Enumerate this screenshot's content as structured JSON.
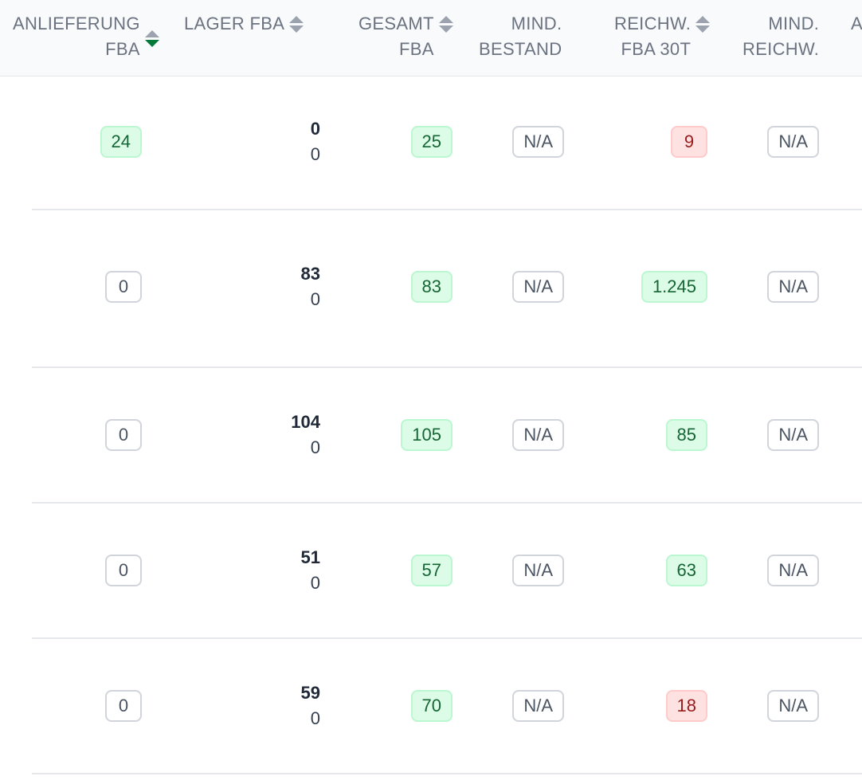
{
  "columns": [
    {
      "key": "anlieferung_fba",
      "label": "ANLIEFERUNG\nFBA",
      "sortable": true,
      "sort_state": "desc"
    },
    {
      "key": "lager_fba",
      "label": "LAGER FBA",
      "sortable": true,
      "sort_state": "none"
    },
    {
      "key": "gesamt_fba",
      "label": "GESAMT\nFBA",
      "sortable": true,
      "sort_state": "none"
    },
    {
      "key": "mind_bestand",
      "label": "MIND.\nBESTAND",
      "sortable": false
    },
    {
      "key": "reichw_fba_30t",
      "label": "REICHW.\nFBA 30T",
      "sortable": true,
      "sort_state": "none"
    },
    {
      "key": "mind_reichw",
      "label": "MIND.\nREICHW.",
      "sortable": false
    },
    {
      "key": "next",
      "label": "A",
      "sortable": false
    }
  ],
  "rows": [
    {
      "anlieferung": {
        "value": "24",
        "status": "green"
      },
      "lager": {
        "main": "0",
        "sub": "0"
      },
      "gesamt": {
        "value": "25",
        "status": "green"
      },
      "mind_bestand": {
        "value": "N/A",
        "status": "neutral"
      },
      "reichw": {
        "value": "9",
        "status": "red"
      },
      "mind_reichw": {
        "value": "N/A",
        "status": "neutral"
      }
    },
    {
      "anlieferung": {
        "value": "0",
        "status": "neutral"
      },
      "lager": {
        "main": "83",
        "sub": "0"
      },
      "gesamt": {
        "value": "83",
        "status": "green"
      },
      "mind_bestand": {
        "value": "N/A",
        "status": "neutral"
      },
      "reichw": {
        "value": "1.245",
        "status": "green"
      },
      "mind_reichw": {
        "value": "N/A",
        "status": "neutral"
      }
    },
    {
      "anlieferung": {
        "value": "0",
        "status": "neutral"
      },
      "lager": {
        "main": "104",
        "sub": "0"
      },
      "gesamt": {
        "value": "105",
        "status": "green"
      },
      "mind_bestand": {
        "value": "N/A",
        "status": "neutral"
      },
      "reichw": {
        "value": "85",
        "status": "green"
      },
      "mind_reichw": {
        "value": "N/A",
        "status": "neutral"
      }
    },
    {
      "anlieferung": {
        "value": "0",
        "status": "neutral"
      },
      "lager": {
        "main": "51",
        "sub": "0"
      },
      "gesamt": {
        "value": "57",
        "status": "green"
      },
      "mind_bestand": {
        "value": "N/A",
        "status": "neutral"
      },
      "reichw": {
        "value": "63",
        "status": "green"
      },
      "mind_reichw": {
        "value": "N/A",
        "status": "neutral"
      }
    },
    {
      "anlieferung": {
        "value": "0",
        "status": "neutral"
      },
      "lager": {
        "main": "59",
        "sub": "0"
      },
      "gesamt": {
        "value": "70",
        "status": "green"
      },
      "mind_bestand": {
        "value": "N/A",
        "status": "neutral"
      },
      "reichw": {
        "value": "18",
        "status": "red"
      },
      "mind_reichw": {
        "value": "N/A",
        "status": "neutral"
      }
    }
  ],
  "colors": {
    "green_bg": "#dcfce7",
    "green_text": "#166534",
    "red_bg": "#fee2e2",
    "red_text": "#991b1b",
    "neutral_border": "#d1d5db",
    "header_bg": "#f9fafb",
    "sort_active": "#047a3a"
  }
}
